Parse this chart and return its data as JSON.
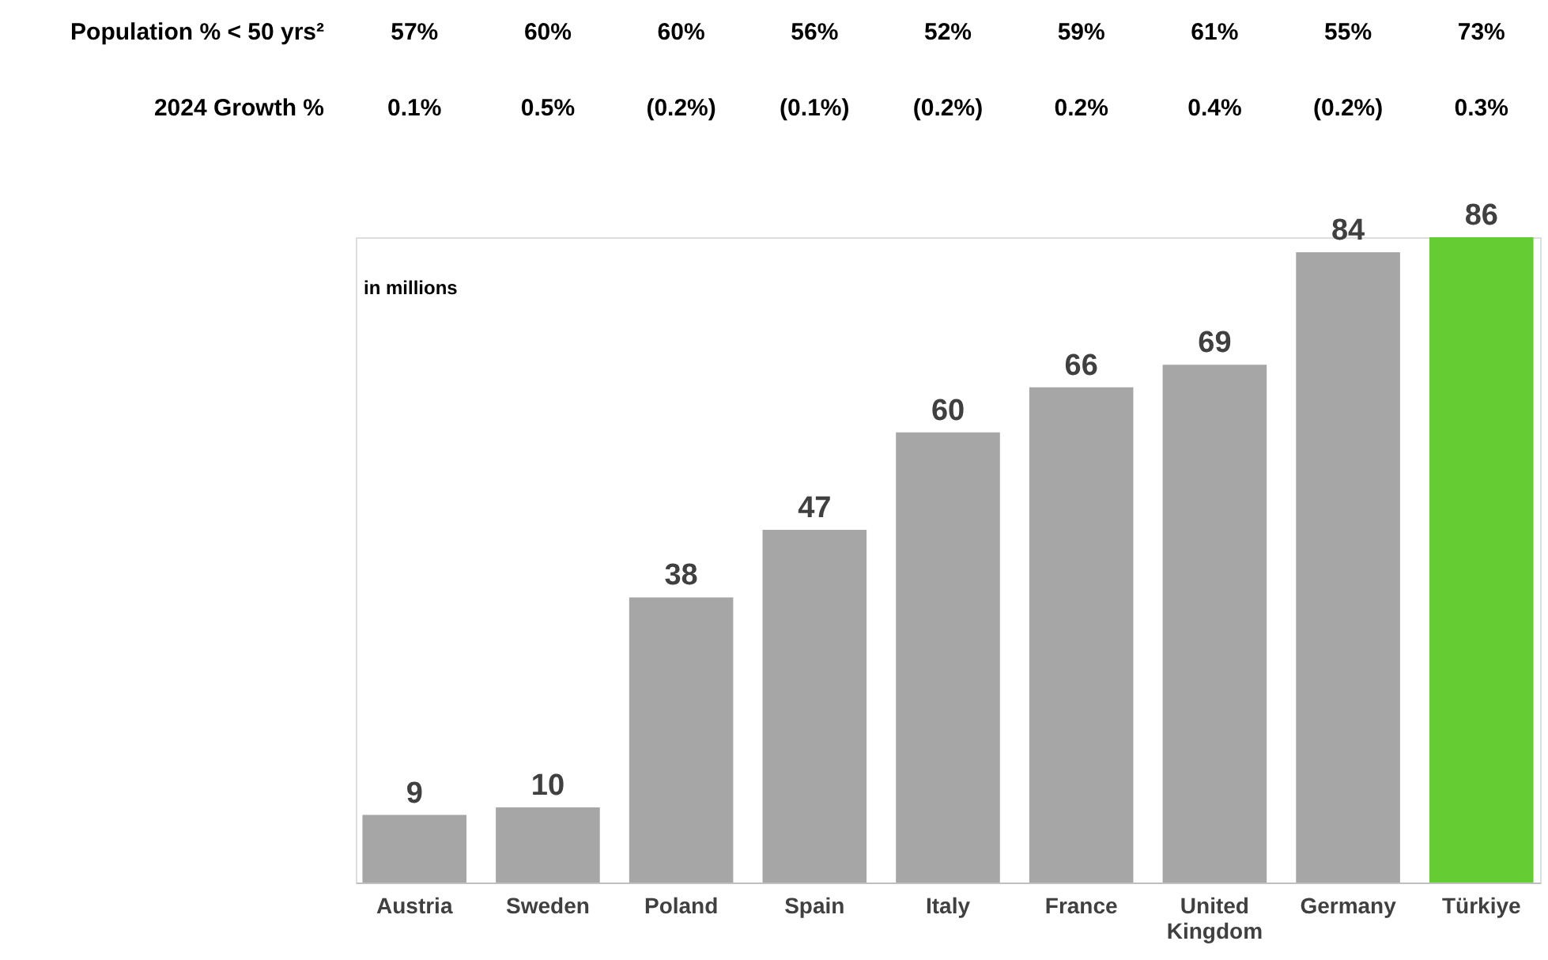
{
  "chart_data": {
    "type": "bar",
    "ylabel": "in millions",
    "categories": [
      "Austria",
      "Sweden",
      "Poland",
      "Spain",
      "Italy",
      "France",
      "United Kingdom",
      "Germany",
      "Türkiye"
    ],
    "values": [
      9,
      10,
      38,
      47,
      60,
      66,
      69,
      84,
      86
    ],
    "colors": [
      "#a6a6a6",
      "#a6a6a6",
      "#a6a6a6",
      "#a6a6a6",
      "#a6a6a6",
      "#a6a6a6",
      "#a6a6a6",
      "#a6a6a6",
      "#66cc33"
    ],
    "data_labels": true,
    "grid": false,
    "annotations": [
      "Population % < 50 yrs²",
      "57%",
      "60%",
      "60%",
      "56%",
      "52%",
      "59%",
      "61%",
      "55%",
      "73%",
      "2024 Growth %",
      "0.1%",
      "0.5%",
      "(0.2%)",
      "(0.1%)",
      "(0.2%)",
      "0.2%",
      "0.4%",
      "(0.2%)",
      "0.3%"
    ]
  }
}
